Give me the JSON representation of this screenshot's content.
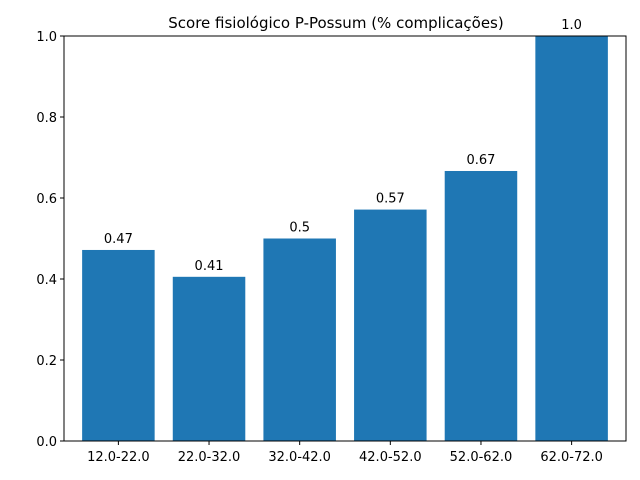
{
  "chart_data": {
    "type": "bar",
    "title": "Score fisiológico P-Possum (% complicações)",
    "xlabel": "",
    "ylabel": "",
    "categories": [
      "12.0-22.0",
      "22.0-32.0",
      "32.0-42.0",
      "42.0-52.0",
      "52.0-62.0",
      "62.0-72.0"
    ],
    "values": [
      0.4717,
      0.4054,
      0.5,
      0.5714,
      0.6667,
      1.0
    ],
    "data_labels": [
      "0.47",
      "0.41",
      "0.5",
      "0.57",
      "0.67",
      "1.0"
    ],
    "ylim": [
      0,
      1.0
    ],
    "yticks": [
      0.0,
      0.2,
      0.4,
      0.6,
      0.8,
      1.0
    ],
    "ytick_labels": [
      "0.0",
      "0.2",
      "0.4",
      "0.6",
      "0.8",
      "1.0"
    ],
    "grid": false,
    "legend": "none",
    "bar_color": "#1f77b4"
  }
}
